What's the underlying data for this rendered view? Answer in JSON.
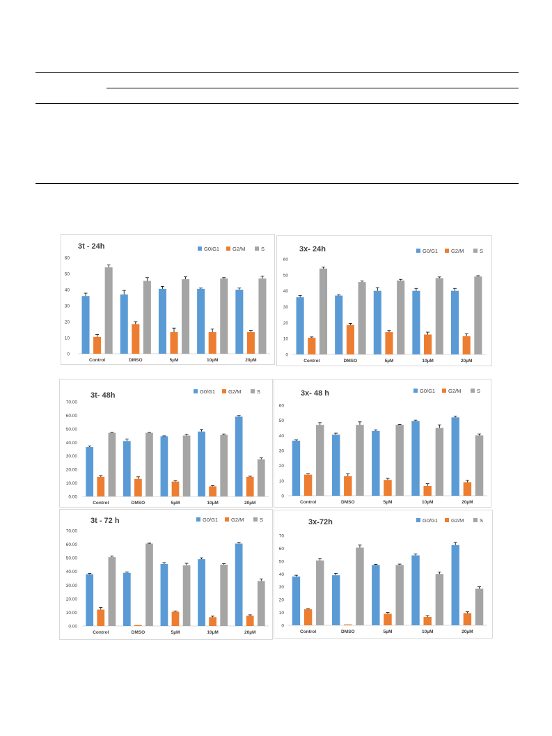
{
  "colors": {
    "G0/G1": "#5b9bd5",
    "G2/M": "#ed7d31",
    "S": "#a5a5a5",
    "axis": "#d9d9d9",
    "text": "#404040",
    "error": "#000000"
  },
  "chart_data": [
    {
      "type": "bar",
      "title": "3t - 24h",
      "categories": [
        "Control",
        "DMSO",
        "5µM",
        "10µM",
        "20µM"
      ],
      "ylim": [
        0,
        60
      ],
      "yticks": [
        "0",
        "10",
        "20",
        "30",
        "40",
        "50",
        "60"
      ],
      "legend_position": "top-right",
      "series": [
        {
          "name": "G0/G1",
          "values": [
            36,
            37,
            40.5,
            40.5,
            40
          ],
          "errors": [
            1.8,
            2.5,
            1.5,
            0.5,
            1
          ]
        },
        {
          "name": "G2/M",
          "values": [
            10.5,
            18.5,
            13.5,
            13.5,
            13.5
          ],
          "errors": [
            1.5,
            1.5,
            2.5,
            2,
            1
          ]
        },
        {
          "name": "S",
          "values": [
            54,
            45.5,
            46.5,
            47,
            47
          ],
          "errors": [
            1.5,
            2,
            1.5,
            0.5,
            1.5
          ]
        }
      ]
    },
    {
      "type": "bar",
      "title": "3x- 24h",
      "categories": [
        "Control",
        "DMSO",
        "5µM",
        "10µM",
        "20µM"
      ],
      "ylim": [
        0,
        60
      ],
      "yticks": [
        "0",
        "10",
        "20",
        "30",
        "40",
        "50",
        "60"
      ],
      "legend_position": "top-right",
      "series": [
        {
          "name": "G0/G1",
          "values": [
            36,
            37,
            40,
            40,
            40
          ],
          "errors": [
            1,
            0.5,
            2,
            1.5,
            1.5
          ]
        },
        {
          "name": "G2/M",
          "values": [
            10.5,
            18.5,
            14,
            12.5,
            11.5
          ],
          "errors": [
            0.5,
            1,
            1,
            1.5,
            1.5
          ]
        },
        {
          "name": "S",
          "values": [
            54,
            45.5,
            46.5,
            48,
            49
          ],
          "errors": [
            1,
            0.7,
            0.7,
            0.7,
            0.5
          ]
        }
      ]
    },
    {
      "type": "bar",
      "title": "3t- 48h",
      "categories": [
        "Control",
        "DMSO",
        "5µM",
        "10µM",
        "20µM"
      ],
      "ylim": [
        0,
        70
      ],
      "yticks": [
        "0.00",
        "10.00",
        "20.00",
        "30.00",
        "40.00",
        "50.00",
        "60.00",
        "70.00"
      ],
      "legend_position": "top-right",
      "series": [
        {
          "name": "G0/G1",
          "values": [
            36.5,
            41,
            44.5,
            48,
            59
          ],
          "errors": [
            0.8,
            1.5,
            0.3,
            1.5,
            0.8
          ]
        },
        {
          "name": "G2/M",
          "values": [
            14.5,
            13,
            11,
            7.5,
            14.5
          ],
          "errors": [
            1,
            1.5,
            0.7,
            0.5,
            0.5
          ]
        },
        {
          "name": "S",
          "values": [
            47,
            47,
            45,
            45.5,
            27.5
          ],
          "errors": [
            0.3,
            0.3,
            1,
            0.7,
            1
          ]
        }
      ]
    },
    {
      "type": "bar",
      "title": "3x- 48 h",
      "categories": [
        "Control",
        "DMSO",
        "5µM",
        "10µM",
        "20µM"
      ],
      "ylim": [
        0,
        60
      ],
      "yticks": [
        "0",
        "10",
        "20",
        "30",
        "40",
        "50",
        "60"
      ],
      "legend_position": "top-right",
      "series": [
        {
          "name": "G0/G1",
          "values": [
            36.5,
            40.5,
            43,
            49.5,
            52
          ],
          "errors": [
            0.5,
            1,
            0.7,
            0.7,
            0.7
          ]
        },
        {
          "name": "G2/M",
          "values": [
            14,
            13,
            10.5,
            6.5,
            9
          ],
          "errors": [
            0.7,
            1.5,
            1,
            1.5,
            1.2
          ]
        },
        {
          "name": "S",
          "values": [
            47,
            47,
            47,
            45,
            40
          ],
          "errors": [
            1.5,
            2,
            0.3,
            2,
            1
          ]
        }
      ]
    },
    {
      "type": "bar",
      "title": "3t - 72 h",
      "categories": [
        "Control",
        "DMSO",
        "5µM",
        "10µM",
        "20µM"
      ],
      "ylim": [
        0,
        70
      ],
      "yticks": [
        "0.00",
        "10.00",
        "20.00",
        "30.00",
        "40.00",
        "50.00",
        "60.00",
        "70.00"
      ],
      "legend_position": "top-right",
      "series": [
        {
          "name": "G0/G1",
          "values": [
            38,
            39,
            45.5,
            49,
            60.5
          ],
          "errors": [
            0.5,
            0.7,
            1,
            1,
            0.7
          ]
        },
        {
          "name": "G2/M",
          "values": [
            12,
            0.7,
            10.5,
            6.5,
            7.5
          ],
          "errors": [
            1.5,
            0,
            0.5,
            0.7,
            0.7
          ]
        },
        {
          "name": "S",
          "values": [
            50.5,
            60.5,
            44.5,
            45,
            33
          ],
          "errors": [
            0.8,
            0.3,
            1.5,
            0.7,
            1.5
          ]
        }
      ]
    },
    {
      "type": "bar",
      "title": "3x-72h",
      "categories": [
        "Control",
        "DMSO",
        "5µM",
        "10µM",
        "20µM"
      ],
      "ylim": [
        0,
        70
      ],
      "yticks": [
        "0",
        "10",
        "20",
        "30",
        "40",
        "50",
        "60",
        "70"
      ],
      "legend_position": "top-right",
      "series": [
        {
          "name": "G0/G1",
          "values": [
            38,
            39,
            47,
            54.5,
            62.5
          ],
          "errors": [
            1,
            1.5,
            0.5,
            1,
            2
          ]
        },
        {
          "name": "G2/M",
          "values": [
            12.5,
            0.7,
            9,
            6.5,
            9.5
          ],
          "errors": [
            0.5,
            0,
            1,
            1,
            1
          ]
        },
        {
          "name": "S",
          "values": [
            50.5,
            60.5,
            47,
            40,
            28.5
          ],
          "errors": [
            1.5,
            2,
            0.7,
            1.5,
            1.5
          ]
        }
      ]
    }
  ]
}
